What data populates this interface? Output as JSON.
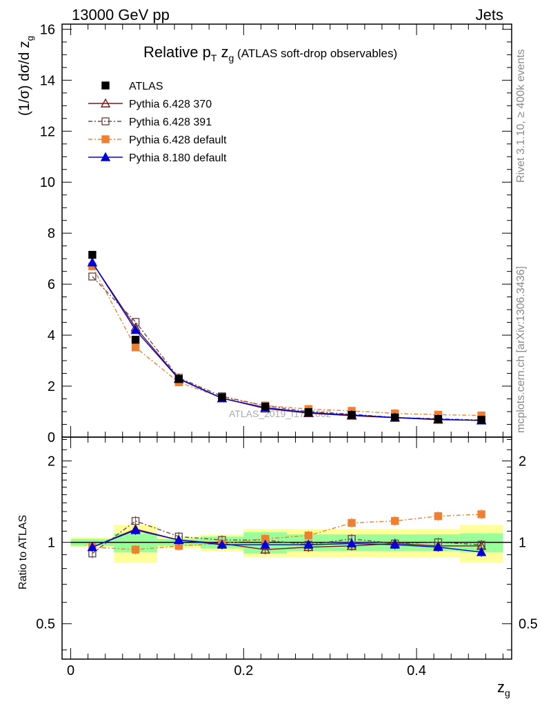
{
  "header": {
    "energy": "13000 GeV pp",
    "process": "Jets",
    "plot_title": "Relative p",
    "plot_title_sub_t": "T",
    "plot_title_mid": " z",
    "plot_title_sub_g": "g",
    "plot_title_rest": " (ATLAS soft-drop observables)",
    "watermark": "ATLAS_2019_I1772062",
    "side_rivet": "Rivet 3.1.10, ≥ 400k events",
    "side_mcplots": "mcplots.cern.ch [arXiv:1306.3436]"
  },
  "axes": {
    "main_ylabel": "(1/σ) dσ/d z",
    "main_ylabel_sub": "g",
    "ratio_ylabel": "Ratio to ATLAS",
    "xlabel": "z",
    "xlabel_sub": "g",
    "main_yticks": [
      "0",
      "2",
      "4",
      "6",
      "8",
      "10",
      "12",
      "14",
      "16"
    ],
    "ratio_yticks": [
      "0.5",
      "1",
      "2"
    ],
    "xticks": [
      "0",
      "0.2",
      "0.4"
    ]
  },
  "chart_data": {
    "type": "line",
    "x": [
      0.025,
      0.075,
      0.125,
      0.175,
      0.225,
      0.275,
      0.325,
      0.375,
      0.425,
      0.475
    ],
    "xlim": [
      -0.01,
      0.51
    ],
    "ylim": [
      0,
      16.2
    ],
    "ratio_ylim": [
      0.37,
      2.45
    ],
    "ratio_scale": "log",
    "legend_position": "top-left",
    "reference": {
      "name": "ATLAS",
      "color": "#000000",
      "values": [
        7.15,
        3.82,
        2.28,
        1.56,
        1.2,
        0.98,
        0.87,
        0.77,
        0.71,
        0.68
      ]
    },
    "series": [
      {
        "name": "Pythia 6.428 370",
        "color": "#7a1515",
        "marker": "triangle-open",
        "dash": "",
        "values": [
          6.85,
          4.3,
          2.3,
          1.53,
          1.12,
          0.94,
          0.84,
          0.76,
          0.68,
          0.66
        ],
        "ratio": [
          0.96,
          1.12,
          1.02,
          0.99,
          0.94,
          0.96,
          0.97,
          0.99,
          0.97,
          0.97
        ]
      },
      {
        "name": "Pythia 6.428 391",
        "color": "#6b4a4a",
        "marker": "square-open",
        "dash": "6,3,2,3",
        "values": [
          6.3,
          4.52,
          2.33,
          1.6,
          1.23,
          1.0,
          0.9,
          0.77,
          0.72,
          0.67
        ],
        "ratio": [
          0.91,
          1.2,
          1.05,
          1.02,
          1.02,
          0.98,
          1.03,
          0.99,
          1.0,
          0.98
        ]
      },
      {
        "name": "Pythia 6.428 default",
        "color": "#f08030",
        "marker": "square",
        "dash": "6,3,2,3",
        "values": [
          6.7,
          3.52,
          2.15,
          1.55,
          1.24,
          1.1,
          1.03,
          0.93,
          0.88,
          0.85
        ],
        "ratio": [
          0.96,
          0.94,
          0.97,
          0.99,
          1.03,
          1.06,
          1.18,
          1.2,
          1.25,
          1.27
        ]
      },
      {
        "name": "Pythia 8.180 default",
        "color": "#0000dd",
        "marker": "triangle",
        "dash": "",
        "values": [
          6.85,
          4.2,
          2.28,
          1.52,
          1.16,
          0.96,
          0.87,
          0.77,
          0.7,
          0.65
        ],
        "ratio": [
          0.96,
          1.11,
          1.02,
          0.98,
          0.98,
          0.98,
          0.99,
          0.98,
          0.96,
          0.92
        ]
      }
    ],
    "uncertainty_bands": {
      "stat_green_half": [
        0.03,
        0.08,
        0.03,
        0.05,
        0.09,
        0.07,
        0.07,
        0.07,
        0.07,
        0.08
      ],
      "total_yellow_half": [
        0.04,
        0.16,
        0.05,
        0.07,
        0.12,
        0.12,
        0.12,
        0.12,
        0.12,
        0.16
      ]
    }
  }
}
